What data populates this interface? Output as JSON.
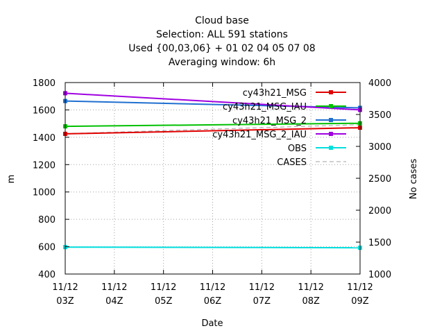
{
  "chart_data": {
    "type": "line",
    "title_lines": [
      "Cloud base",
      "Selection: ALL    591 stations",
      "Used {00,03,06} + 01 02 04 05 07 08",
      "Averaging window:  6h"
    ],
    "xlabel": "Date",
    "ylabel": "m",
    "y2label": "No cases",
    "x": [
      0,
      1,
      2,
      3,
      4,
      5,
      6
    ],
    "xlim": [
      0,
      6
    ],
    "x_tick_labels": [
      [
        "11/12",
        "03Z"
      ],
      [
        "11/12",
        "04Z"
      ],
      [
        "11/12",
        "05Z"
      ],
      [
        "11/12",
        "06Z"
      ],
      [
        "11/12",
        "07Z"
      ],
      [
        "11/12",
        "08Z"
      ],
      [
        "11/12",
        "09Z"
      ]
    ],
    "ylim": [
      400,
      1800
    ],
    "y_ticks": [
      "400",
      "600",
      "800",
      "1000",
      "1200",
      "1400",
      "1600",
      "1800"
    ],
    "y2lim": [
      1000,
      4000
    ],
    "y2_ticks": [
      "1000",
      "1500",
      "2000",
      "2500",
      "3000",
      "3500",
      "4000"
    ],
    "grid": true,
    "legend_position": "top-right",
    "series": [
      {
        "name": "cy43h21_MSG",
        "color": "#e00000",
        "axis": "y",
        "x": [
          0,
          6
        ],
        "values": [
          1425,
          1470
        ]
      },
      {
        "name": "cy43h21_MSG_IAU",
        "color": "#00c000",
        "axis": "y",
        "x": [
          0,
          6
        ],
        "values": [
          1480,
          1502
        ]
      },
      {
        "name": "cy43h21_MSG_2",
        "color": "#1f6fd0",
        "axis": "y",
        "x": [
          0,
          6
        ],
        "values": [
          1665,
          1615
        ]
      },
      {
        "name": "cy43h21_MSG_2_IAU",
        "color": "#a000e0",
        "axis": "y",
        "x": [
          0,
          6
        ],
        "values": [
          1722,
          1600
        ]
      },
      {
        "name": "OBS",
        "color": "#00dede",
        "axis": "y",
        "x": [
          0,
          6
        ],
        "values": [
          597,
          592
        ]
      },
      {
        "name": "CASES",
        "color": "#a0a0a0",
        "axis": "y2",
        "dashed": true,
        "x": [
          0,
          6
        ],
        "values": [
          3200,
          3340
        ]
      }
    ]
  }
}
